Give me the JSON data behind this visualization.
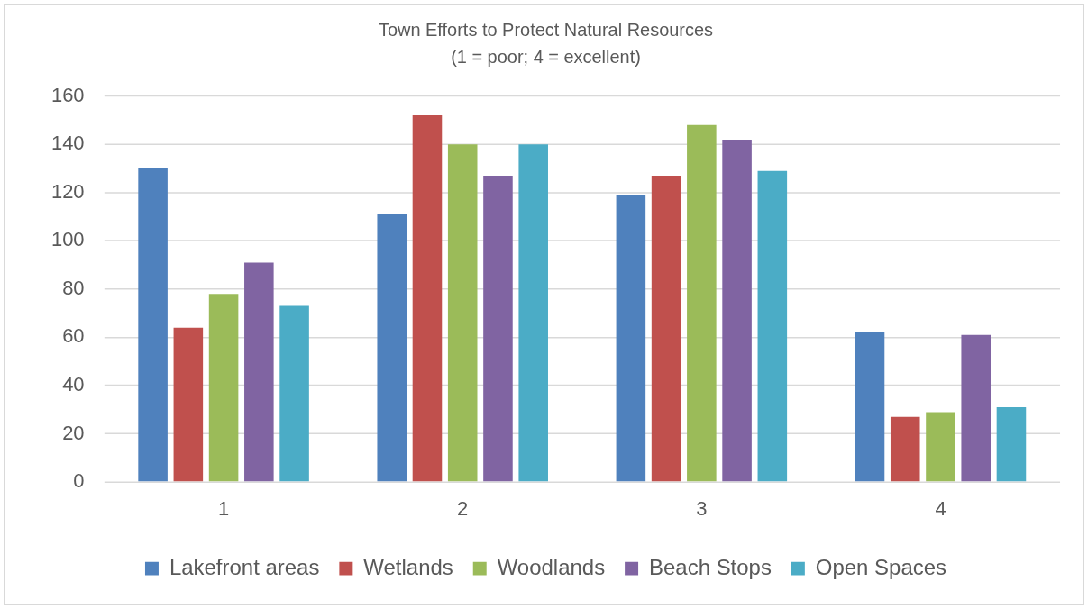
{
  "chart_data": {
    "type": "bar",
    "title": "Town Efforts to Protect Natural Resources",
    "subtitle": "(1 = poor; 4 = excellent)",
    "categories": [
      "1",
      "2",
      "3",
      "4"
    ],
    "series": [
      {
        "name": "Lakefront areas",
        "color": "#4f81bd",
        "values": [
          130,
          111,
          119,
          62
        ]
      },
      {
        "name": "Wetlands",
        "color": "#c0504d",
        "values": [
          64,
          152,
          127,
          27
        ]
      },
      {
        "name": "Woodlands",
        "color": "#9bbb59",
        "values": [
          78,
          140,
          148,
          29
        ]
      },
      {
        "name": "Beach Stops",
        "color": "#8064a2",
        "values": [
          91,
          127,
          142,
          61
        ]
      },
      {
        "name": "Open Spaces",
        "color": "#4bacc6",
        "values": [
          73,
          140,
          129,
          31
        ]
      }
    ],
    "ylim": [
      0,
      160
    ],
    "yticks": [
      0,
      20,
      40,
      60,
      80,
      100,
      120,
      140,
      160
    ],
    "grid": "y",
    "legend": "bottom"
  }
}
